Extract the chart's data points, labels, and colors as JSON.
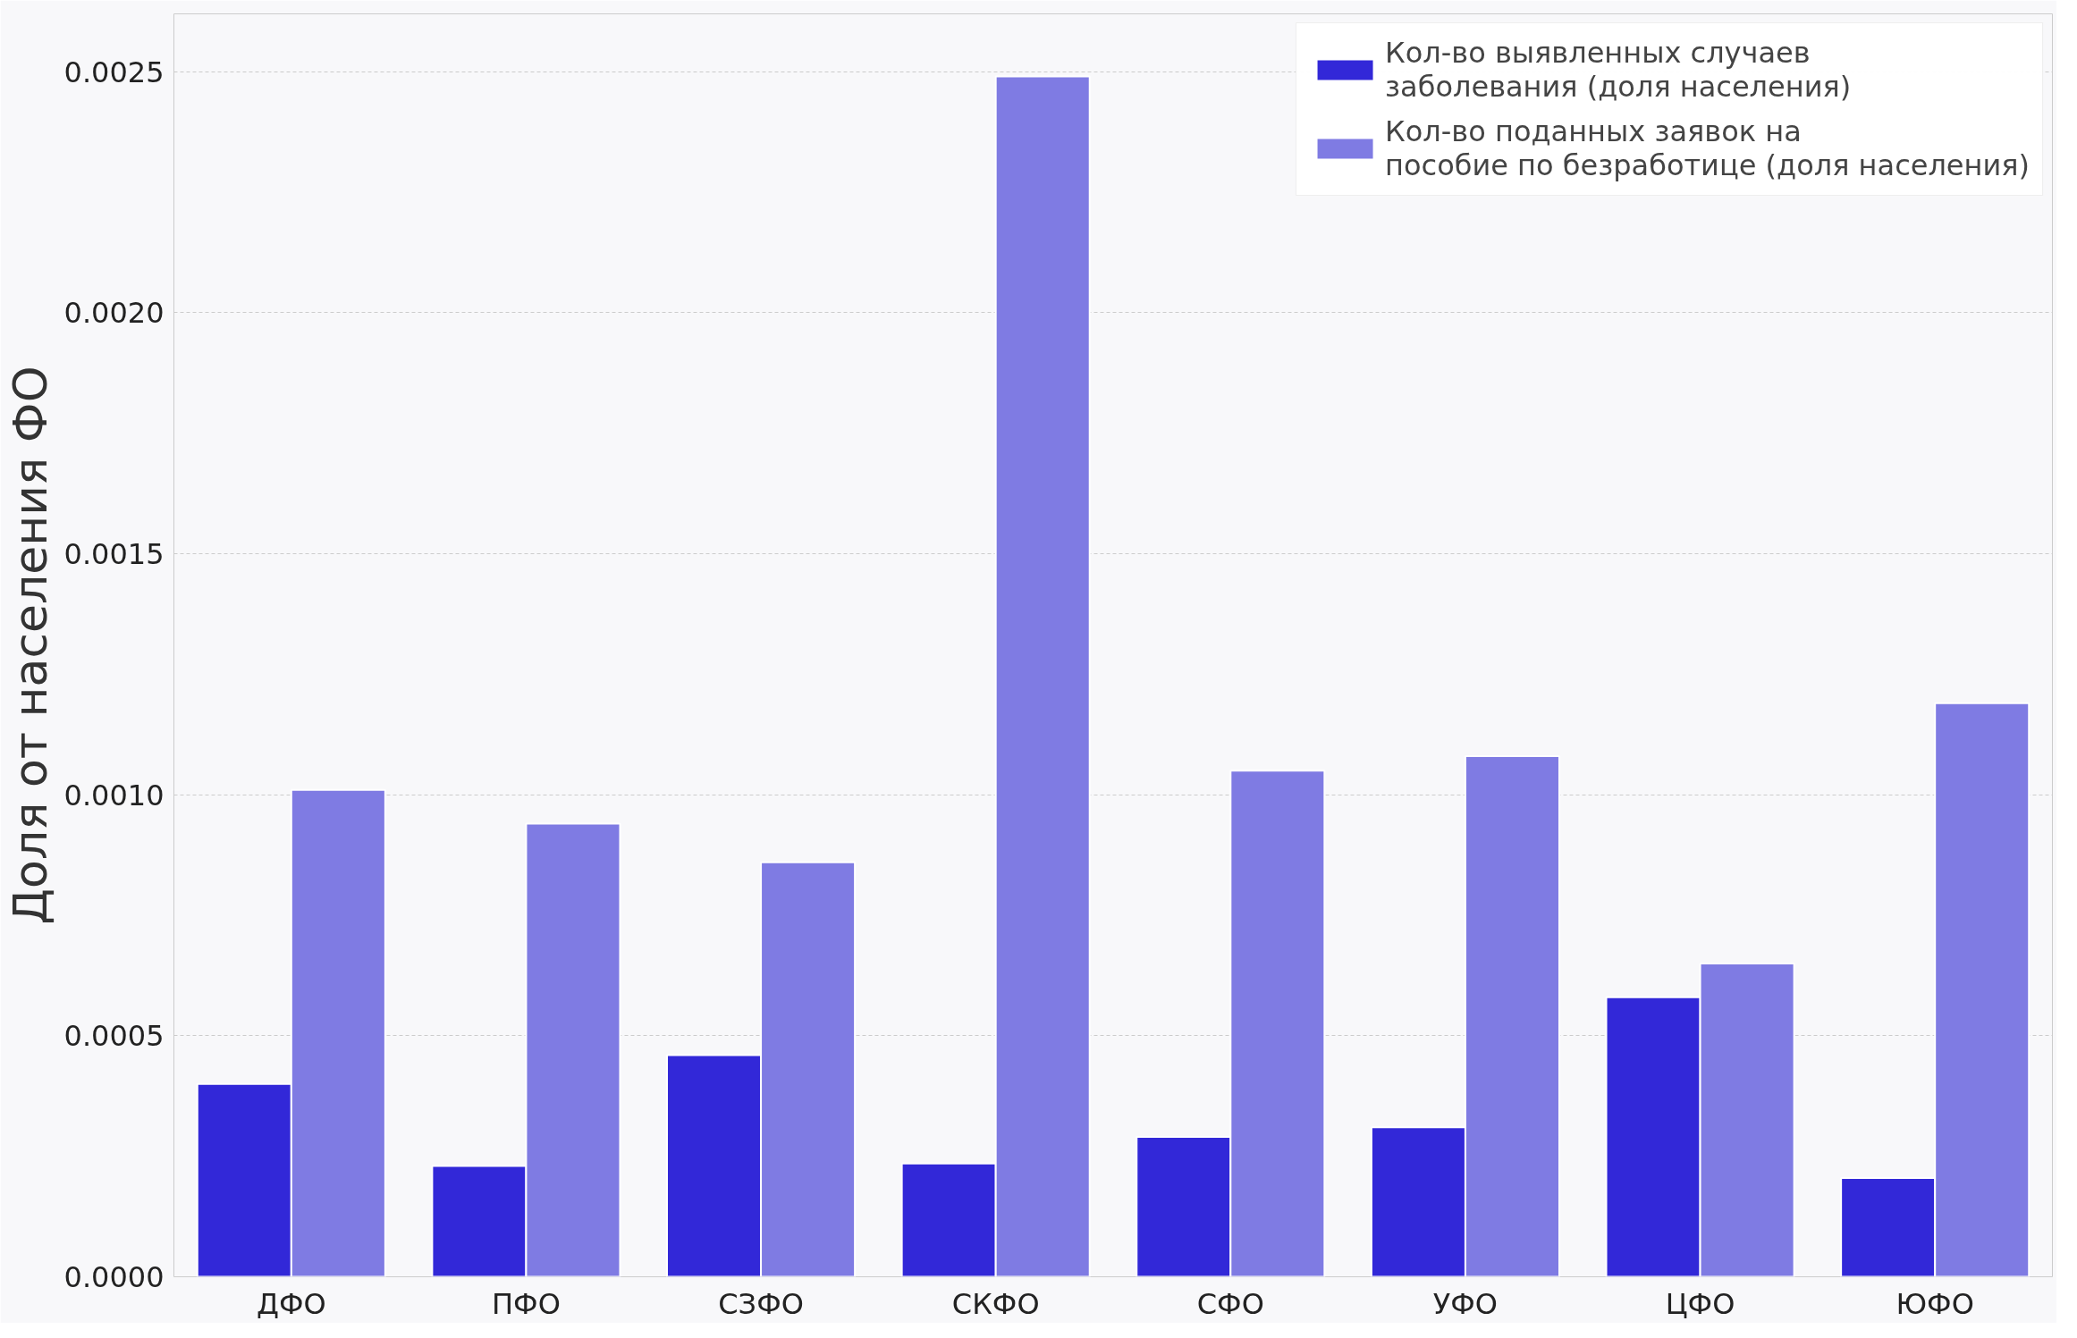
{
  "chart_data": {
    "type": "bar",
    "ylabel": "Доля от населения ФО",
    "categories": [
      "ДФО",
      "ПФО",
      "СЗФО",
      "СКФО",
      "СФО",
      "УФО",
      "ЦФО",
      "ЮФО"
    ],
    "series": [
      {
        "name": "Кол-во выявленных случаев\nзаболевания (доля населения)",
        "color": "#3228d8",
        "values": [
          0.0004,
          0.00023,
          0.00046,
          0.000235,
          0.00029,
          0.00031,
          0.00058,
          0.000205
        ]
      },
      {
        "name": "Кол-во поданных заявок на\nпособие по безработице (доля населения)",
        "color": "#7f7be3",
        "values": [
          0.00101,
          0.00094,
          0.00086,
          0.00249,
          0.00105,
          0.00108,
          0.00065,
          0.00119
        ]
      }
    ],
    "ylim": [
      0,
      0.00262
    ],
    "yticks": [
      {
        "value": 0,
        "label": "0.0000"
      },
      {
        "value": 0.0005,
        "label": "0.0005"
      },
      {
        "value": 0.001,
        "label": "0.0010"
      },
      {
        "value": 0.0015,
        "label": "0.0015"
      },
      {
        "value": 0.002,
        "label": "0.0020"
      },
      {
        "value": 0.0025,
        "label": "0.0025"
      }
    ],
    "grid": "y",
    "legend": "top right"
  }
}
